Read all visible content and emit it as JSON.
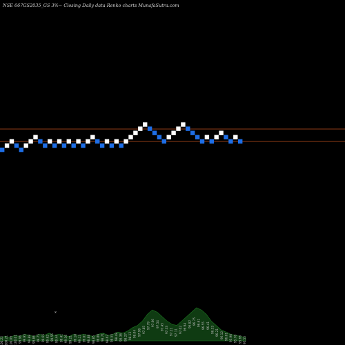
{
  "chart_data": {
    "type": "renko",
    "title": "NSE 667GS2035_GS 3%~  Closing Daily data  Renko  charts MunafaSutra.com",
    "colors": {
      "background": "#000000",
      "up_brick": "#ffffff",
      "down_brick": "#1e6ee6",
      "reference_line": "#c0501e",
      "volume_fill": "#0f3b12",
      "volume_peak": "#1e7a22"
    },
    "reference_lines": [
      {
        "label": "upper"
      },
      {
        "label": "lower"
      }
    ],
    "bricks": [
      {
        "dir": "down",
        "level": 1
      },
      {
        "dir": "up",
        "level": 2
      },
      {
        "dir": "up",
        "level": 3
      },
      {
        "dir": "down",
        "level": 2
      },
      {
        "dir": "down",
        "level": 1
      },
      {
        "dir": "up",
        "level": 2
      },
      {
        "dir": "up",
        "level": 3
      },
      {
        "dir": "up",
        "level": 4
      },
      {
        "dir": "down",
        "level": 3
      },
      {
        "dir": "down",
        "level": 2
      },
      {
        "dir": "up",
        "level": 3
      },
      {
        "dir": "down",
        "level": 2
      },
      {
        "dir": "up",
        "level": 3
      },
      {
        "dir": "down",
        "level": 2
      },
      {
        "dir": "up",
        "level": 3
      },
      {
        "dir": "down",
        "level": 2
      },
      {
        "dir": "up",
        "level": 3
      },
      {
        "dir": "down",
        "level": 2
      },
      {
        "dir": "up",
        "level": 3
      },
      {
        "dir": "up",
        "level": 4
      },
      {
        "dir": "down",
        "level": 3
      },
      {
        "dir": "down",
        "level": 2
      },
      {
        "dir": "up",
        "level": 3
      },
      {
        "dir": "down",
        "level": 2
      },
      {
        "dir": "up",
        "level": 3
      },
      {
        "dir": "down",
        "level": 2
      },
      {
        "dir": "up",
        "level": 3
      },
      {
        "dir": "up",
        "level": 4
      },
      {
        "dir": "up",
        "level": 5
      },
      {
        "dir": "up",
        "level": 6
      },
      {
        "dir": "up",
        "level": 7
      },
      {
        "dir": "down",
        "level": 6
      },
      {
        "dir": "down",
        "level": 5
      },
      {
        "dir": "down",
        "level": 4
      },
      {
        "dir": "down",
        "level": 3
      },
      {
        "dir": "up",
        "level": 4
      },
      {
        "dir": "up",
        "level": 5
      },
      {
        "dir": "up",
        "level": 6
      },
      {
        "dir": "up",
        "level": 7
      },
      {
        "dir": "down",
        "level": 6
      },
      {
        "dir": "down",
        "level": 5
      },
      {
        "dir": "down",
        "level": 4
      },
      {
        "dir": "down",
        "level": 3
      },
      {
        "dir": "up",
        "level": 4
      },
      {
        "dir": "down",
        "level": 3
      },
      {
        "dir": "up",
        "level": 4
      },
      {
        "dir": "up",
        "level": 5
      },
      {
        "dir": "down",
        "level": 4
      },
      {
        "dir": "down",
        "level": 3
      },
      {
        "dir": "up",
        "level": 4
      },
      {
        "dir": "down",
        "level": 3
      }
    ],
    "volume_profile": [
      3,
      4,
      3,
      5,
      4,
      6,
      5,
      4,
      6,
      5,
      7,
      5,
      6,
      5,
      4,
      6,
      5,
      6,
      5,
      4,
      6,
      7,
      5,
      6,
      8,
      7,
      9,
      12,
      14,
      18,
      24,
      28,
      26,
      22,
      18,
      15,
      14,
      18,
      22,
      26,
      30,
      28,
      24,
      18,
      14,
      10,
      8,
      6,
      5,
      4,
      3
    ],
    "volume_labels": [
      "100.22",
      "100.21",
      "100.09",
      "100.01",
      "99.98",
      "99.95",
      "99.88",
      "99.86",
      "99.75",
      "99.65",
      "99.62",
      "99.55",
      "99.44",
      "99.41",
      "99.36",
      "99.21",
      "99.18",
      "99.13",
      "99.01",
      "98.88",
      "98.85",
      "98.80",
      "98.71",
      "98.62",
      "98.55",
      "98.48",
      "98.36",
      "98.27",
      "98.13",
      "98.04",
      "97.98",
      "97.85",
      "97.79",
      "97.66",
      "97.54",
      "97.45",
      "97.33",
      "97.21",
      "97.11",
      "97.02",
      "96.94",
      "96.82",
      "96.75",
      "96.61",
      "96.55",
      "96.41",
      "96.33",
      "96.21",
      "96.12",
      "96.01",
      "95.90",
      "95.78",
      "95.66",
      "95.55"
    ],
    "marker_text": "x"
  }
}
